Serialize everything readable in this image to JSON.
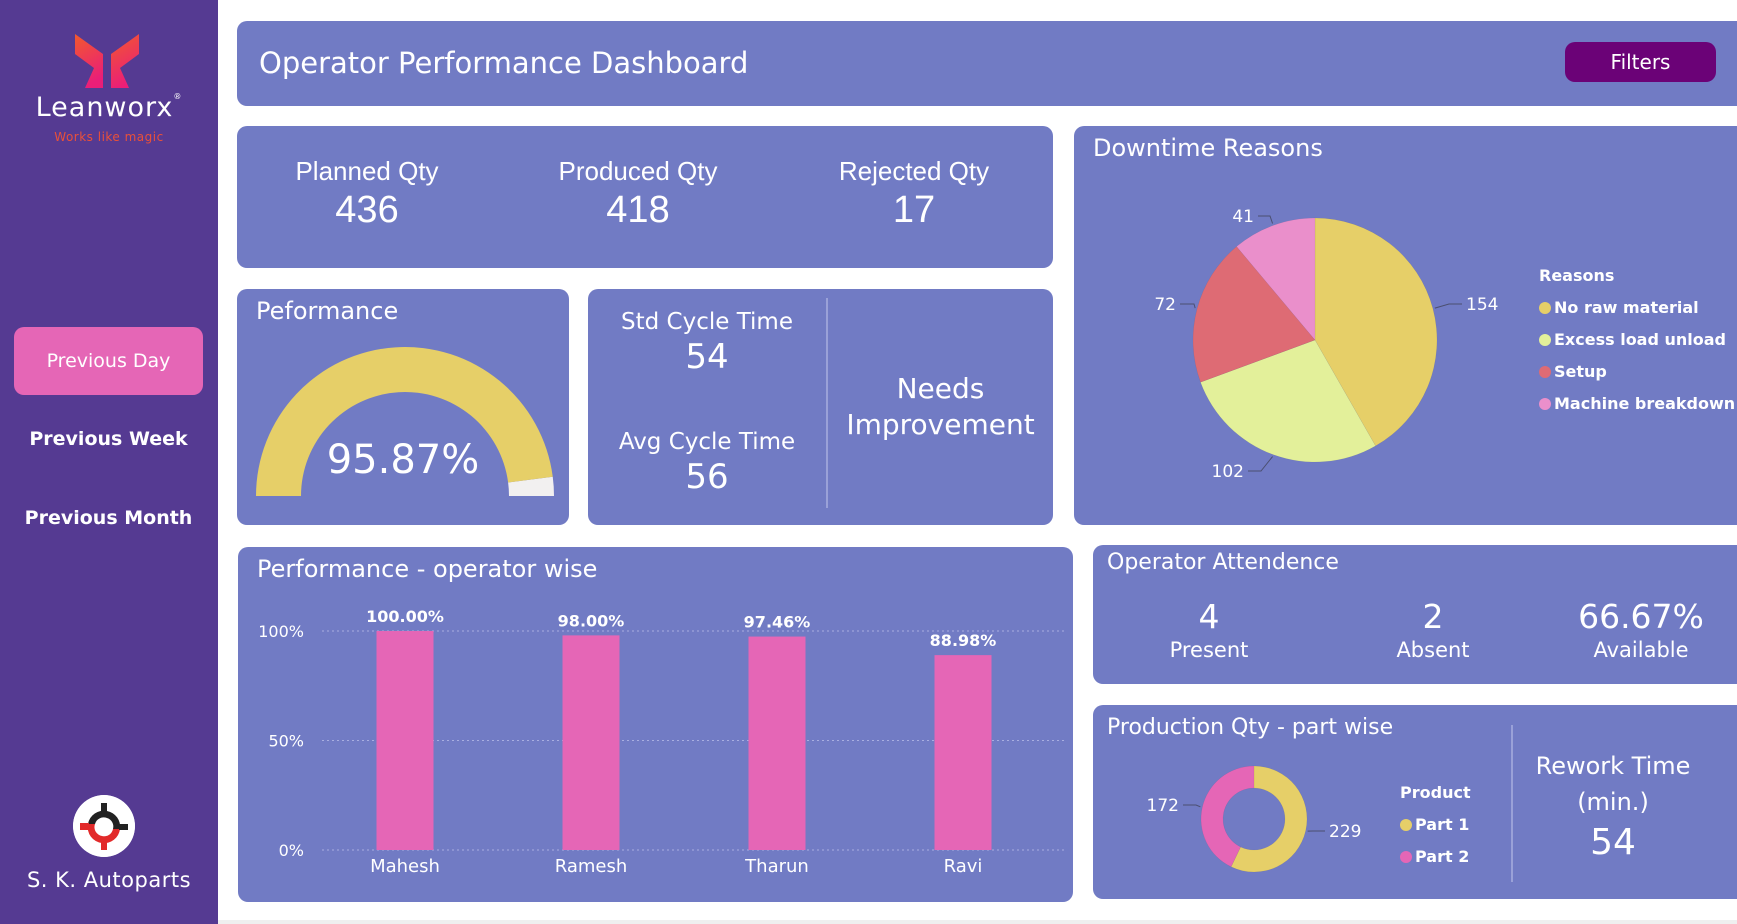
{
  "brand": {
    "name": "Leanworx",
    "registered_mark": "®",
    "tagline": "Works like magic"
  },
  "sidebar": {
    "items": [
      {
        "label": "Previous Day",
        "active": true
      },
      {
        "label": "Previous Week",
        "active": false
      },
      {
        "label": "Previous Month",
        "active": false
      }
    ],
    "company_name": "S. K. Autoparts"
  },
  "header": {
    "title": "Operator Performance Dashboard",
    "filters_label": "Filters"
  },
  "colors": {
    "sidebar_bg": "#553a92",
    "card_bg": "#717bc4",
    "active_nav": "#e566b6",
    "filters_btn": "#6b0277",
    "gauge_fill": "#e6cf68",
    "gauge_remaining": "#f2f0f0",
    "bar_color": "#e566b6"
  },
  "kpis": [
    {
      "label": "Planned Qty",
      "value": "436"
    },
    {
      "label": "Produced Qty",
      "value": "418"
    },
    {
      "label": "Rejected Qty",
      "value": "17"
    }
  ],
  "performance": {
    "title": "Peformance",
    "value_text": "95.87%",
    "fraction": 0.9587
  },
  "cycle_time": {
    "std_label": "Std Cycle Time",
    "std_value": "54",
    "avg_label": "Avg Cycle Time",
    "avg_value": "56",
    "status_line1": "Needs",
    "status_line2": "Improvement"
  },
  "attendance": {
    "title": "Operator Attendence",
    "items": [
      {
        "value": "4",
        "label": "Present"
      },
      {
        "value": "2",
        "label": "Absent"
      },
      {
        "value": "66.67%",
        "label": "Available"
      }
    ]
  },
  "rework": {
    "label_line1": "Rework Time",
    "label_line2": "(min.)",
    "value": "54"
  },
  "chart_data": [
    {
      "id": "downtime",
      "type": "pie",
      "title": "Downtime Reasons",
      "legend_title": "Reasons",
      "legend_position": "right",
      "categories": [
        "No raw material",
        "Excess load unload",
        "Setup",
        "Machine breakdown"
      ],
      "values": [
        154,
        102,
        72,
        41
      ],
      "colors": [
        "#e6cf68",
        "#e3f09a",
        "#de6b74",
        "#ea8fcb"
      ]
    },
    {
      "id": "operator_performance",
      "type": "bar",
      "title": "Performance - operator wise",
      "categories": [
        "Mahesh",
        "Ramesh",
        "Tharun",
        "Ravi"
      ],
      "values": [
        100.0,
        98.0,
        97.46,
        88.98
      ],
      "data_labels": [
        "100.00%",
        "98.00%",
        "97.46%",
        "88.98%"
      ],
      "yticks": [
        "0%",
        "50%",
        "100%"
      ],
      "ytick_values": [
        0,
        50,
        100
      ],
      "ylim": [
        0,
        100
      ],
      "grid": true,
      "xlabel": "",
      "ylabel": "",
      "color": "#e566b6"
    },
    {
      "id": "part_production",
      "type": "pie",
      "donut": true,
      "title": "Production Qty - part wise",
      "legend_title": "Product",
      "legend_position": "right",
      "categories": [
        "Part 1",
        "Part 2"
      ],
      "values": [
        229,
        172
      ],
      "colors": [
        "#e6cf68",
        "#e566b6"
      ]
    }
  ]
}
